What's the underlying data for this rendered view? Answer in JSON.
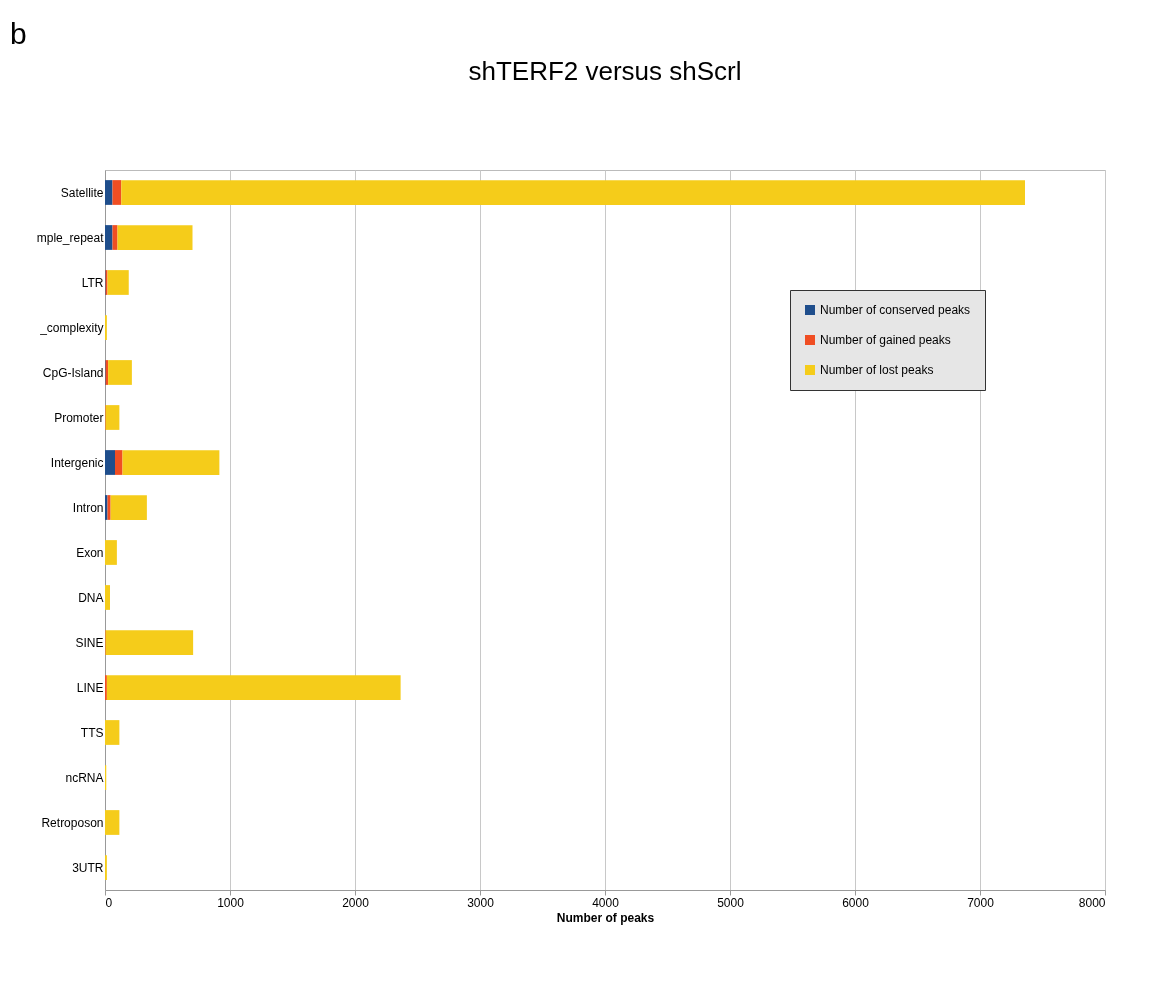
{
  "chart_data": {
    "type": "bar",
    "orientation": "horizontal",
    "stacked": true,
    "title": "shTERF2 versus shScrl",
    "xlabel": "Number of peaks",
    "annotations": [
      "b"
    ],
    "categories": [
      "Satellite",
      "mple_repeat",
      "LTR",
      "_complexity",
      "CpG-Island",
      "Promoter",
      "Intergenic",
      "Intron",
      "Exon",
      "DNA",
      "SINE",
      "LINE",
      "TTS",
      "ncRNA",
      "Retroposon",
      "3UTR"
    ],
    "series": [
      {
        "name": "Number of conserved peaks",
        "color": "#1f4e8c",
        "values": [
          60,
          60,
          5,
          0,
          5,
          0,
          80,
          20,
          0,
          0,
          0,
          0,
          0,
          0,
          0,
          0
        ]
      },
      {
        "name": "Number of gained peaks",
        "color": "#f04e23",
        "values": [
          70,
          40,
          15,
          0,
          20,
          5,
          60,
          25,
          0,
          0,
          5,
          15,
          0,
          0,
          0,
          0
        ]
      },
      {
        "name": "Number of lost peaks",
        "color": "#f5cc1a",
        "values": [
          7230,
          600,
          170,
          15,
          190,
          110,
          775,
          290,
          95,
          40,
          700,
          2350,
          115,
          10,
          115,
          15
        ]
      }
    ],
    "xlim": [
      0,
      8000
    ],
    "xticks": [
      0,
      1000,
      2000,
      3000,
      4000,
      5000,
      6000,
      7000,
      8000
    ],
    "grid": "x",
    "legend": "top right"
  }
}
